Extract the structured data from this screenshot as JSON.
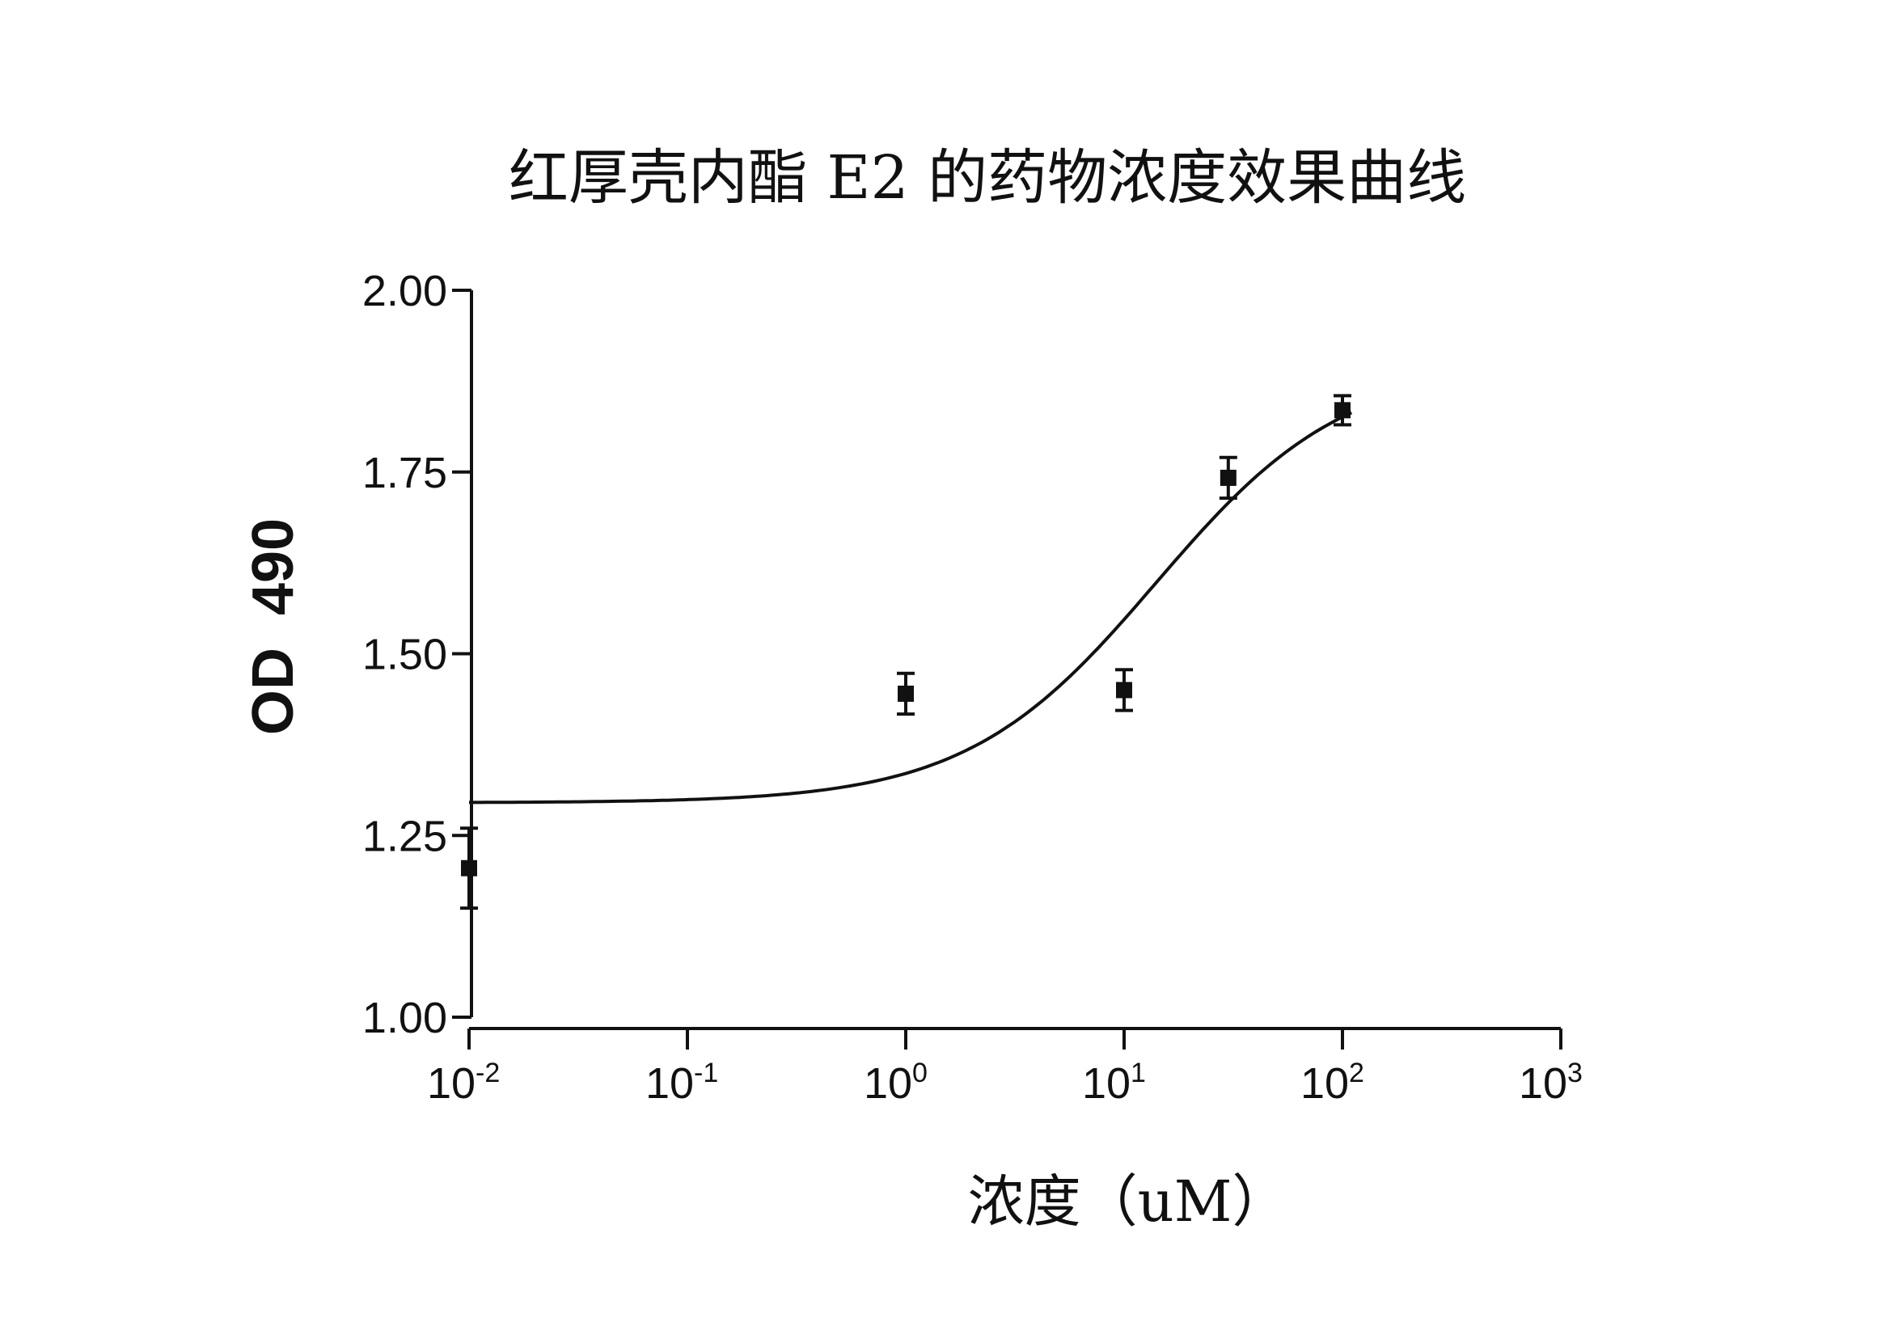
{
  "chart_data": {
    "type": "scatter",
    "title": "红厚壳内酯 E2 的药物浓度效果曲线",
    "xlabel": "浓度（uM）",
    "ylabel": "OD  490",
    "xscale": "log",
    "xlim": [
      0.01,
      1000
    ],
    "ylim": [
      1.0,
      2.0
    ],
    "yticks": [
      1.0,
      1.25,
      1.5,
      1.75,
      2.0
    ],
    "ytick_labels": [
      "1.00",
      "1.25",
      "1.50",
      "1.75",
      "2.00"
    ],
    "xticks": [
      {
        "value": 0.01,
        "base": "10",
        "exp": "-2"
      },
      {
        "value": 0.1,
        "base": "10",
        "exp": "-1"
      },
      {
        "value": 1,
        "base": "10",
        "exp": "0"
      },
      {
        "value": 10,
        "base": "10",
        "exp": "1"
      },
      {
        "value": 100,
        "base": "10",
        "exp": "2"
      },
      {
        "value": 1000,
        "base": "10",
        "exp": "3"
      }
    ],
    "grid": false,
    "legend": "none",
    "points": [
      {
        "x": 0.01,
        "y": 1.205,
        "err": 0.055
      },
      {
        "x": 1.0,
        "y": 1.445,
        "err": 0.028
      },
      {
        "x": 10.0,
        "y": 1.45,
        "err": 0.028
      },
      {
        "x": 30.0,
        "y": 1.742,
        "err": 0.028
      },
      {
        "x": 100.0,
        "y": 1.835,
        "err": 0.02
      }
    ],
    "fit_curve": {
      "model": "sigmoidal dose-response",
      "bottom": 1.295,
      "top": 1.9,
      "ec50": 14,
      "hill": 1
    }
  }
}
